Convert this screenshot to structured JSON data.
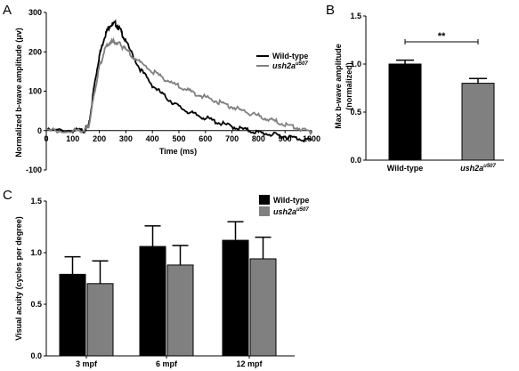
{
  "panels": [
    {
      "letter": "A"
    },
    {
      "letter": "B"
    },
    {
      "letter": "C"
    }
  ],
  "chart_data": [
    {
      "panel": "A",
      "type": "line",
      "xlabel": "Time (ms)",
      "ylabel": "Normalized b-wave amplitude (μv)",
      "xlim": [
        0,
        1000
      ],
      "ylim": [
        -100,
        300
      ],
      "xticks": [
        0,
        100,
        200,
        300,
        400,
        500,
        600,
        700,
        800,
        900,
        1000
      ],
      "xtick_labels": [
        "0",
        "100",
        "200",
        "300",
        "400",
        "500",
        "600",
        "700",
        "800",
        "900",
        "1000"
      ],
      "yticks": [
        -100,
        0,
        100,
        200,
        300
      ],
      "ytick_labels": [
        "-100",
        "0",
        "100",
        "200",
        "300"
      ],
      "legend_position": "top-right",
      "series": [
        {
          "name": "Wild-type",
          "color": "#000000",
          "x": [
            0,
            100,
            140,
            160,
            180,
            200,
            220,
            240,
            260,
            280,
            300,
            350,
            400,
            450,
            500,
            550,
            600,
            650,
            700,
            750,
            800,
            850,
            900,
            950,
            1000
          ],
          "y": [
            0,
            0,
            0,
            10,
            110,
            190,
            240,
            268,
            272,
            255,
            225,
            160,
            115,
            85,
            60,
            43,
            32,
            20,
            10,
            2,
            -5,
            -10,
            -15,
            -20,
            -25
          ]
        },
        {
          "name": "ush2a",
          "name_sup": "u507",
          "color": "#808080",
          "x": [
            0,
            100,
            140,
            160,
            180,
            200,
            220,
            240,
            260,
            280,
            300,
            350,
            400,
            450,
            500,
            550,
            600,
            650,
            700,
            750,
            800,
            850,
            900,
            950,
            1000
          ],
          "y": [
            0,
            0,
            0,
            10,
            90,
            160,
            205,
            225,
            225,
            218,
            205,
            175,
            150,
            130,
            112,
            97,
            85,
            72,
            60,
            48,
            37,
            26,
            16,
            6,
            -5
          ]
        }
      ]
    },
    {
      "panel": "B",
      "type": "bar",
      "ylabel": "Max b-wave amplitude (normalized)",
      "ylabel_lines": [
        "Max b-wave amplitude",
        "(normalized)"
      ],
      "categories": [
        "Wild-type",
        "ush2a"
      ],
      "category_sup": [
        "",
        "u507"
      ],
      "values": [
        1.0,
        0.8
      ],
      "errors": [
        0.04,
        0.05
      ],
      "colors": [
        "#000000",
        "#808080"
      ],
      "ylim": [
        0.0,
        1.5
      ],
      "yticks": [
        0.0,
        0.5,
        1.0,
        1.5
      ],
      "ytick_labels": [
        "0.0",
        "0.5",
        "1.0",
        "1.5"
      ],
      "significance": {
        "between": [
          0,
          1
        ],
        "label": "**"
      }
    },
    {
      "panel": "C",
      "type": "bar",
      "ylabel": "Visual acuity (cycles per degree)",
      "categories": [
        "3 mpf",
        "6 mpf",
        "12 mpf"
      ],
      "ylim": [
        0.0,
        1.5
      ],
      "yticks": [
        0.0,
        0.5,
        1.0,
        1.5
      ],
      "ytick_labels": [
        "0.0",
        "0.5",
        "1.0",
        "1.5"
      ],
      "legend_position": "top-right",
      "series": [
        {
          "name": "Wild-type",
          "color": "#000000",
          "values": [
            0.79,
            1.06,
            1.12
          ],
          "errors": [
            0.17,
            0.2,
            0.18
          ]
        },
        {
          "name": "ush2a",
          "name_sup": "u507",
          "color": "#808080",
          "values": [
            0.7,
            0.88,
            0.94
          ],
          "errors": [
            0.22,
            0.19,
            0.21
          ]
        }
      ]
    }
  ]
}
